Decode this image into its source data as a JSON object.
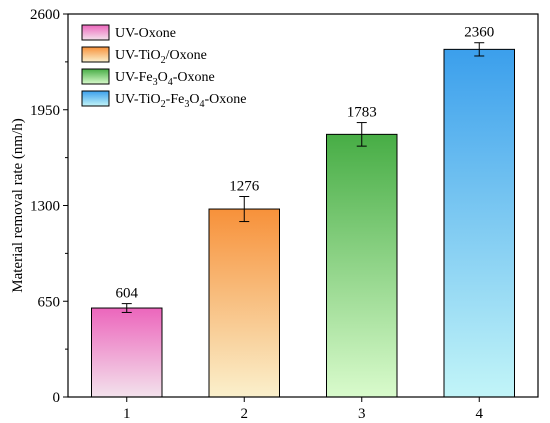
{
  "chart_data": {
    "type": "bar",
    "categories": [
      "1",
      "2",
      "3",
      "4"
    ],
    "values": [
      604,
      1276,
      1783,
      2360
    ],
    "errors": [
      30,
      85,
      80,
      45
    ],
    "data_labels": [
      "604",
      "1276",
      "1783",
      "2360"
    ],
    "ylabel": "Material removal rate (nm/h)",
    "xlabel": "",
    "ylim": [
      0,
      2600
    ],
    "yticks": [
      0,
      650,
      1300,
      1950,
      2600
    ],
    "ytick_labels": [
      "0",
      "650",
      "1300",
      "1950",
      "2600"
    ],
    "grid": false,
    "legend": {
      "position": "top-left",
      "entries": [
        {
          "main": "UV-Oxone"
        },
        {
          "parts": [
            "UV-TiO",
            "2",
            "/Oxone"
          ]
        },
        {
          "parts": [
            "UV-Fe",
            "3",
            "O",
            "4",
            "-Oxone"
          ]
        },
        {
          "parts": [
            "UV-TiO",
            "2",
            "-Fe",
            "3",
            "O",
            "4",
            "-Oxone"
          ]
        }
      ]
    },
    "series_colors": [
      {
        "top": "#ec66bc",
        "bottom": "#f3e2ec"
      },
      {
        "top": "#f7913a",
        "bottom": "#faf0cc"
      },
      {
        "top": "#47ad45",
        "bottom": "#d9fbcc"
      },
      {
        "top": "#3b9fec",
        "bottom": "#c2f5f8"
      }
    ]
  }
}
